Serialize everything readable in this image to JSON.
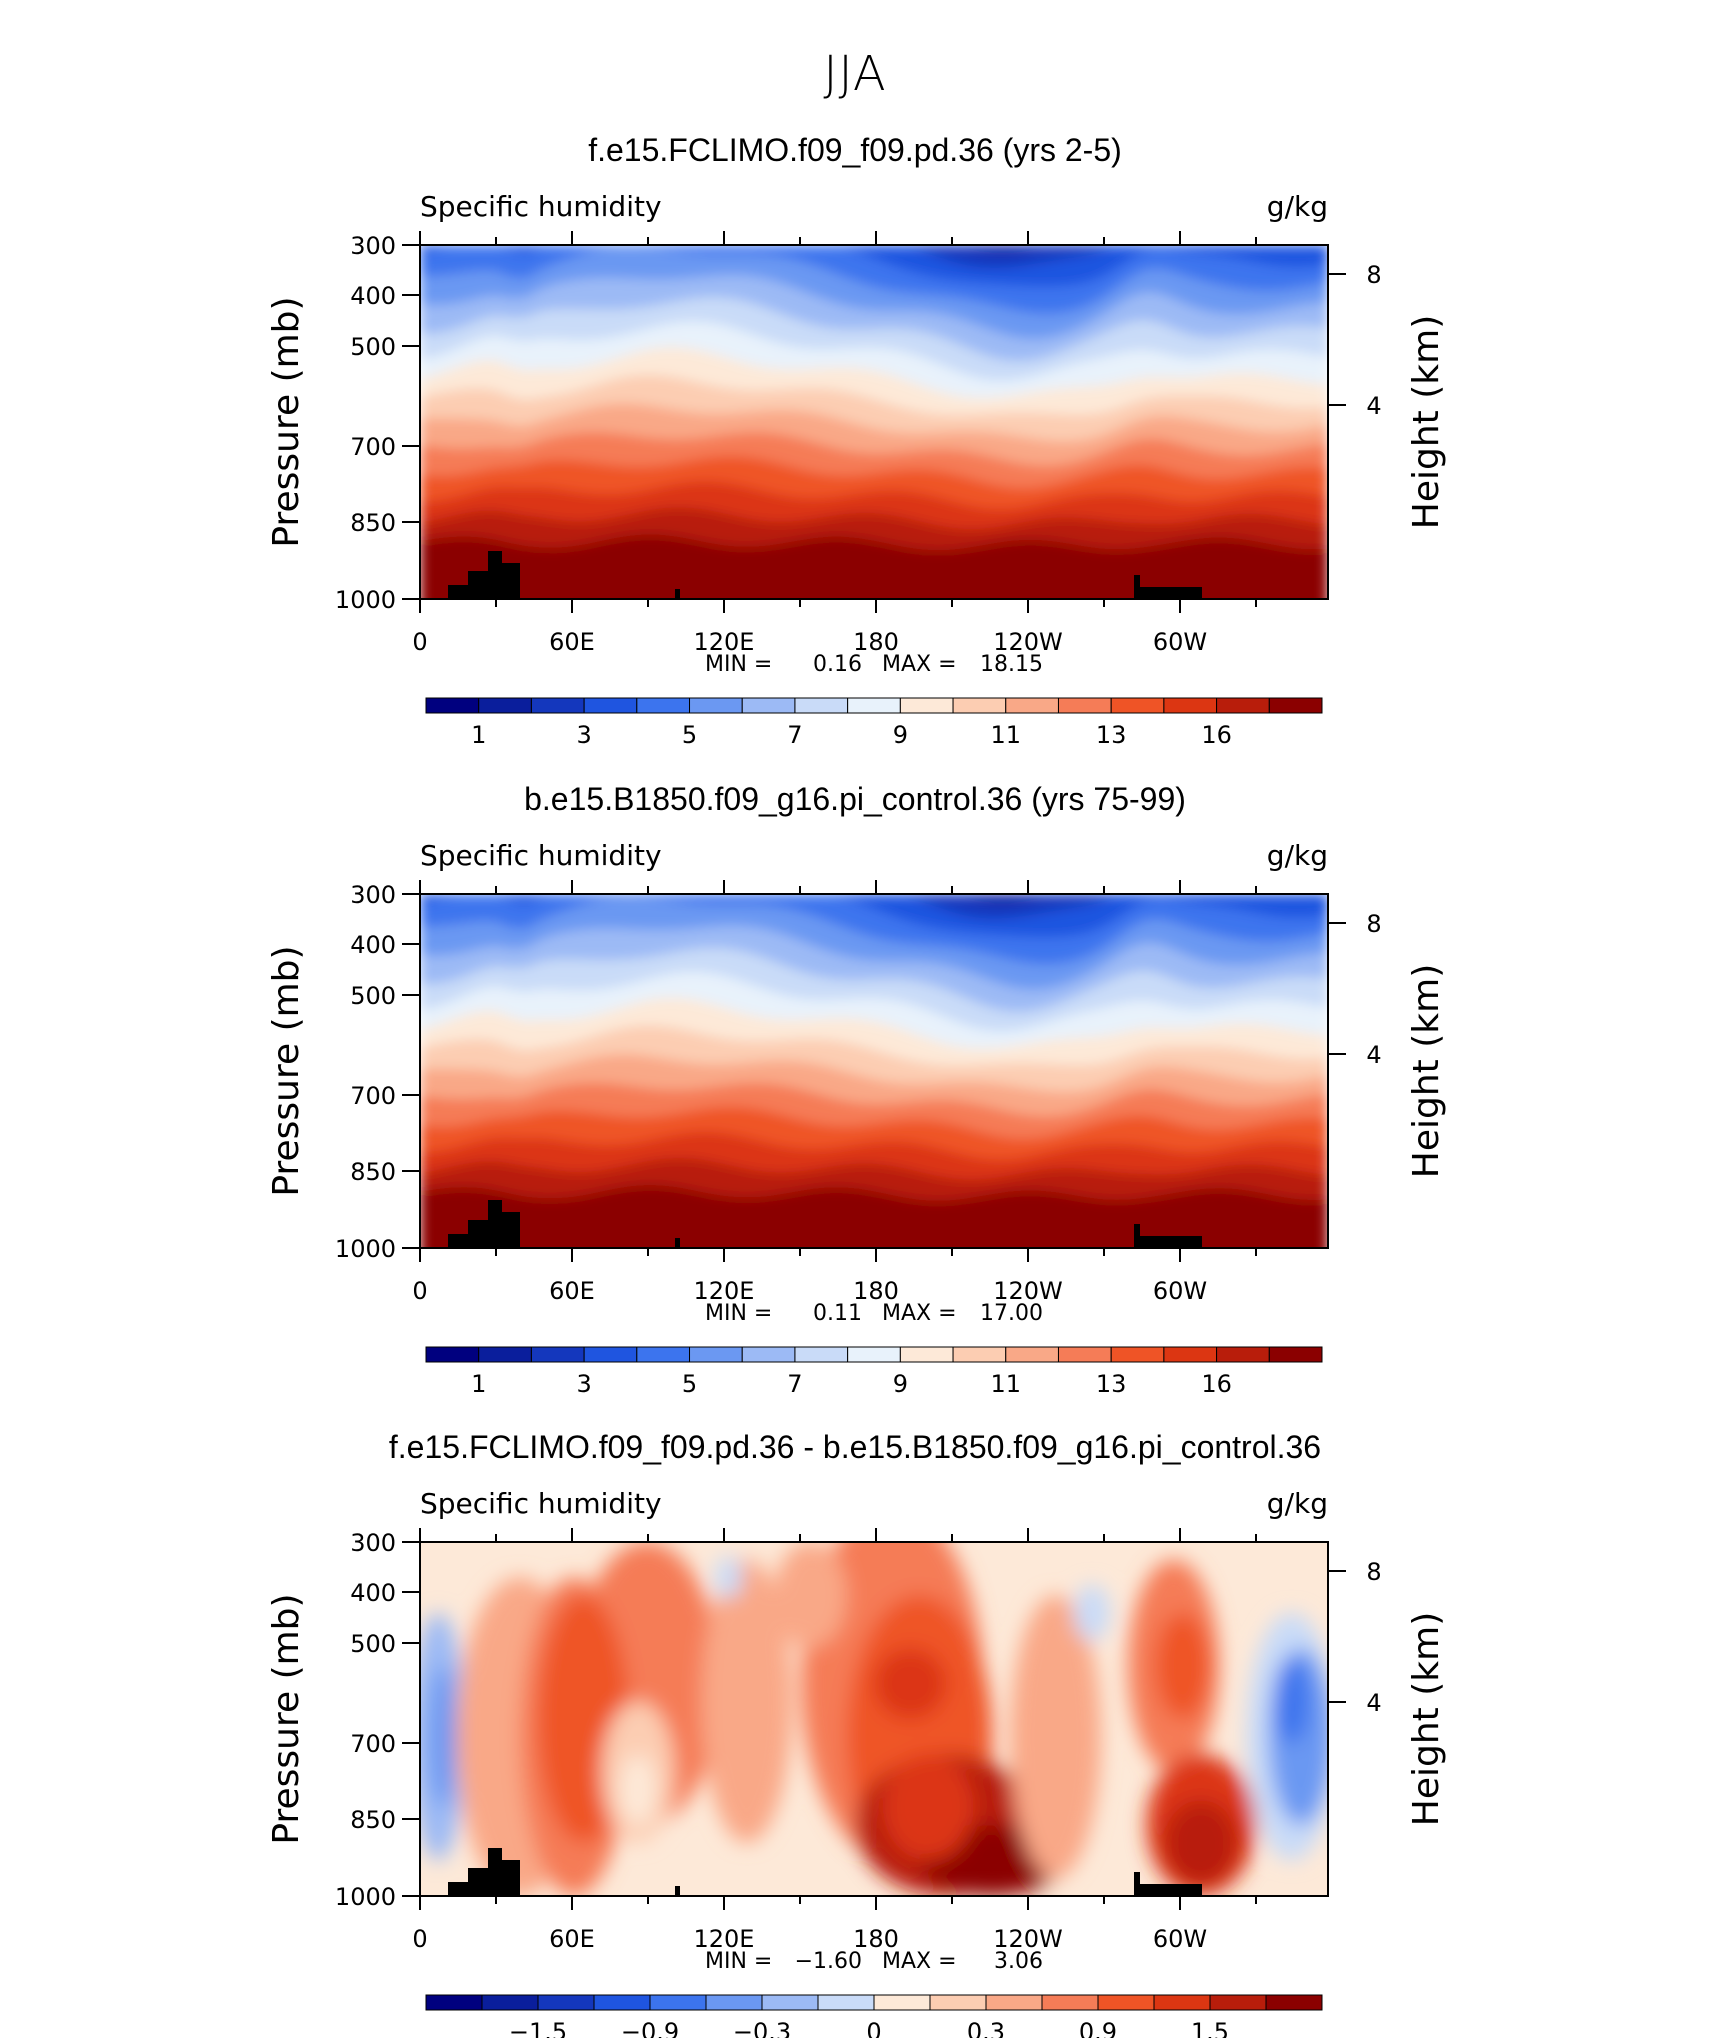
{
  "page": {
    "title": "JJA"
  },
  "chart_data": [
    {
      "type": "contour",
      "title": "f.e15.FCLIMO.f09_f09.pd.36 (yrs 2-5)",
      "left_label": "Specific humidity",
      "right_label": "g/kg",
      "ylabel": "Pressure (mb)",
      "ylabel_right": "Height (km)",
      "yticks": [
        "300",
        "400",
        "500",
        "700",
        "850",
        "1000"
      ],
      "yticks_right": [
        "8",
        "4"
      ],
      "xticks": [
        "0",
        "60E",
        "120E",
        "180",
        "120W",
        "60W"
      ],
      "ylim": [
        1000,
        300
      ],
      "xlim": [
        0,
        360
      ],
      "stats": {
        "min_label": "MIN =",
        "min": "0.16",
        "max_label": "MAX =",
        "max": "18.15"
      },
      "colorbar": {
        "labels": [
          "1",
          "3",
          "5",
          "7",
          "9",
          "11",
          "13",
          "16"
        ],
        "colors": [
          "#00007f",
          "#0a1e9c",
          "#1437bd",
          "#1f55e0",
          "#3c74ee",
          "#6b98f2",
          "#9cbaf5",
          "#c9dbf8",
          "#e8f2fb",
          "#fde9d8",
          "#fccdb2",
          "#f9a887",
          "#f57c57",
          "#ef5426",
          "#dc3612",
          "#b81d0b",
          "#8b0000"
        ]
      }
    },
    {
      "type": "contour",
      "title": "b.e15.B1850.f09_g16.pi_control.36 (yrs 75-99)",
      "left_label": "Specific humidity",
      "right_label": "g/kg",
      "ylabel": "Pressure (mb)",
      "ylabel_right": "Height (km)",
      "yticks": [
        "300",
        "400",
        "500",
        "700",
        "850",
        "1000"
      ],
      "yticks_right": [
        "8",
        "4"
      ],
      "xticks": [
        "0",
        "60E",
        "120E",
        "180",
        "120W",
        "60W"
      ],
      "ylim": [
        1000,
        300
      ],
      "xlim": [
        0,
        360
      ],
      "stats": {
        "min_label": "MIN =",
        "min": "0.11",
        "max_label": "MAX =",
        "max": "17.00"
      },
      "colorbar": {
        "labels": [
          "1",
          "3",
          "5",
          "7",
          "9",
          "11",
          "13",
          "16"
        ],
        "colors": [
          "#00007f",
          "#0a1e9c",
          "#1437bd",
          "#1f55e0",
          "#3c74ee",
          "#6b98f2",
          "#9cbaf5",
          "#c9dbf8",
          "#e8f2fb",
          "#fde9d8",
          "#fccdb2",
          "#f9a887",
          "#f57c57",
          "#ef5426",
          "#dc3612",
          "#b81d0b",
          "#8b0000"
        ]
      }
    },
    {
      "type": "contour",
      "title": "f.e15.FCLIMO.f09_f09.pd.36 - b.e15.B1850.f09_g16.pi_control.36",
      "left_label": "Specific humidity",
      "right_label": "g/kg",
      "ylabel": "Pressure (mb)",
      "ylabel_right": "Height (km)",
      "yticks": [
        "300",
        "400",
        "500",
        "700",
        "850",
        "1000"
      ],
      "yticks_right": [
        "8",
        "4"
      ],
      "xticks": [
        "0",
        "60E",
        "120E",
        "180",
        "120W",
        "60W"
      ],
      "ylim": [
        1000,
        300
      ],
      "xlim": [
        0,
        360
      ],
      "stats": {
        "min_label": "MIN =",
        "min": "−1.60",
        "max_label": "MAX =",
        "max": "3.06"
      },
      "colorbar": {
        "labels": [
          "−1.5",
          "−0.9",
          "−0.3",
          "0",
          "0.3",
          "0.9",
          "1.5"
        ],
        "colors": [
          "#00007f",
          "#0a1e9c",
          "#1437bd",
          "#1f55e0",
          "#3c74ee",
          "#6b98f2",
          "#9cbaf5",
          "#c9dbf8",
          "#fde9d8",
          "#fccdb2",
          "#f9a887",
          "#f57c57",
          "#ef5426",
          "#dc3612",
          "#b81d0b",
          "#8b0000"
        ]
      }
    }
  ]
}
